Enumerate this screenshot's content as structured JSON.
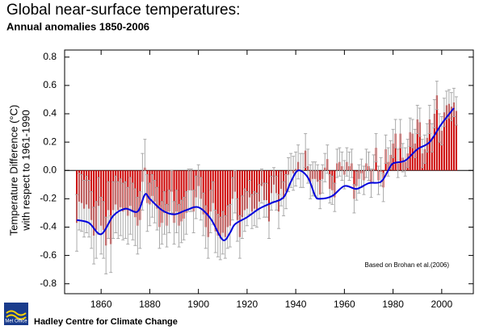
{
  "chart_data": {
    "type": "bar",
    "title": "Global near-surface temperatures:",
    "subtitle": "Annual anomalies 1850-2006",
    "y_label": [
      "Temperature Difference (°C)",
      "with respect to 1961-1990"
    ],
    "annotation": "Based on Brohan et al.(2006)",
    "footer": "Hadley Centre for Climate Change",
    "logo": "Met Office",
    "x_start": 1850,
    "values": [
      -0.37,
      -0.22,
      -0.23,
      -0.27,
      -0.24,
      -0.27,
      -0.35,
      -0.46,
      -0.42,
      -0.25,
      -0.39,
      -0.42,
      -0.53,
      -0.28,
      -0.52,
      -0.28,
      -0.24,
      -0.28,
      -0.26,
      -0.29,
      -0.28,
      -0.32,
      -0.25,
      -0.29,
      -0.33,
      -0.39,
      -0.35,
      -0.08,
      0.02,
      -0.23,
      -0.24,
      -0.18,
      -0.22,
      -0.27,
      -0.4,
      -0.37,
      -0.3,
      -0.39,
      -0.29,
      -0.15,
      -0.37,
      -0.29,
      -0.39,
      -0.36,
      -0.34,
      -0.3,
      -0.14,
      -0.14,
      -0.29,
      -0.19,
      -0.11,
      -0.2,
      -0.31,
      -0.4,
      -0.47,
      -0.29,
      -0.23,
      -0.43,
      -0.46,
      -0.48,
      -0.44,
      -0.47,
      -0.4,
      -0.39,
      -0.2,
      -0.15,
      -0.35,
      -0.47,
      -0.33,
      -0.28,
      -0.27,
      -0.19,
      -0.29,
      -0.27,
      -0.28,
      -0.22,
      -0.11,
      -0.21,
      -0.21,
      -0.36,
      -0.16,
      -0.1,
      -0.16,
      -0.29,
      -0.13,
      -0.2,
      -0.15,
      -0.03,
      0,
      -0.02,
      0.01,
      0.06,
      0,
      0,
      0.14,
      0.03,
      -0.08,
      -0.06,
      -0.06,
      -0.08,
      -0.17,
      -0.06,
      0.02,
      0.08,
      -0.13,
      -0.14,
      -0.19,
      0.05,
      0.06,
      0.03,
      -0.03,
      0.06,
      0.03,
      0.05,
      -0.2,
      -0.11,
      -0.06,
      -0.02,
      -0.07,
      0.05,
      0.03,
      -0.09,
      0.01,
      0.16,
      -0.07,
      -0.01,
      -0.12,
      0.15,
      0.06,
      0.11,
      0.19,
      0.26,
      0.05,
      0.26,
      0.09,
      0.06,
      0.12,
      0.27,
      0.26,
      0.19,
      0.36,
      0.34,
      0.12,
      0.15,
      0.23,
      0.36,
      0.23,
      0.4,
      0.53,
      0.3,
      0.28,
      0.41,
      0.46,
      0.47,
      0.45,
      0.48,
      0.42
    ],
    "errors": [
      0.2,
      0.2,
      0.2,
      0.2,
      0.2,
      0.2,
      0.2,
      0.2,
      0.2,
      0.2,
      0.2,
      0.2,
      0.2,
      0.2,
      0.2,
      0.2,
      0.2,
      0.2,
      0.2,
      0.2,
      0.2,
      0.2,
      0.2,
      0.2,
      0.2,
      0.2,
      0.2,
      0.2,
      0.2,
      0.2,
      0.15,
      0.15,
      0.15,
      0.15,
      0.15,
      0.15,
      0.15,
      0.15,
      0.15,
      0.15,
      0.15,
      0.15,
      0.15,
      0.15,
      0.15,
      0.15,
      0.15,
      0.15,
      0.15,
      0.15,
      0.15,
      0.15,
      0.15,
      0.15,
      0.15,
      0.15,
      0.15,
      0.15,
      0.15,
      0.15,
      0.15,
      0.15,
      0.15,
      0.15,
      0.15,
      0.15,
      0.15,
      0.15,
      0.15,
      0.15,
      0.12,
      0.12,
      0.12,
      0.12,
      0.12,
      0.12,
      0.12,
      0.12,
      0.12,
      0.12,
      0.12,
      0.12,
      0.12,
      0.12,
      0.12,
      0.12,
      0.12,
      0.12,
      0.12,
      0.12,
      0.12,
      0.12,
      0.12,
      0.12,
      0.12,
      0.12,
      0.12,
      0.12,
      0.12,
      0.12,
      0.1,
      0.1,
      0.1,
      0.1,
      0.1,
      0.1,
      0.1,
      0.1,
      0.1,
      0.1,
      0.1,
      0.1,
      0.1,
      0.1,
      0.1,
      0.1,
      0.1,
      0.1,
      0.1,
      0.1,
      0.1,
      0.1,
      0.1,
      0.1,
      0.1,
      0.1,
      0.1,
      0.1,
      0.1,
      0.1,
      0.1,
      0.1,
      0.1,
      0.1,
      0.1,
      0.1,
      0.1,
      0.1,
      0.1,
      0.1,
      0.1,
      0.1,
      0.1,
      0.1,
      0.1,
      0.1,
      0.1,
      0.1,
      0.1,
      0.1,
      0.1,
      0.1,
      0.1,
      0.1,
      0.1,
      0.1,
      0.1
    ],
    "color": "#cc0000",
    "error_color": "#aaaaaa",
    "smooth": {
      "color": "#0000dd",
      "x": [
        1850,
        1855,
        1860,
        1865,
        1870,
        1875,
        1878,
        1880,
        1885,
        1890,
        1895,
        1900,
        1905,
        1910,
        1913,
        1915,
        1920,
        1925,
        1930,
        1935,
        1938,
        1941,
        1945,
        1948,
        1950,
        1955,
        1960,
        1965,
        1970,
        1975,
        1978,
        1980,
        1985,
        1990,
        1995,
        2000,
        2005
      ],
      "values": [
        -0.35,
        -0.37,
        -0.45,
        -0.32,
        -0.27,
        -0.29,
        -0.17,
        -0.2,
        -0.28,
        -0.31,
        -0.28,
        -0.26,
        -0.34,
        -0.49,
        -0.44,
        -0.38,
        -0.33,
        -0.27,
        -0.23,
        -0.19,
        -0.08,
        0,
        -0.05,
        -0.18,
        -0.2,
        -0.18,
        -0.11,
        -0.13,
        -0.09,
        -0.08,
        0,
        0.05,
        0.07,
        0.15,
        0.2,
        0.33,
        0.44
      ]
    },
    "xlim": [
      1845,
      2013
    ],
    "xticks": [
      1860,
      1880,
      1900,
      1920,
      1940,
      1960,
      1980,
      2000
    ],
    "ylim": [
      -0.87,
      0.85
    ],
    "yticks": [
      0.8,
      0.6,
      0.4,
      0.2,
      {
        "value": 0,
        "label": "0.0"
      },
      -0.2,
      -0.4,
      -0.6,
      -0.8
    ]
  }
}
